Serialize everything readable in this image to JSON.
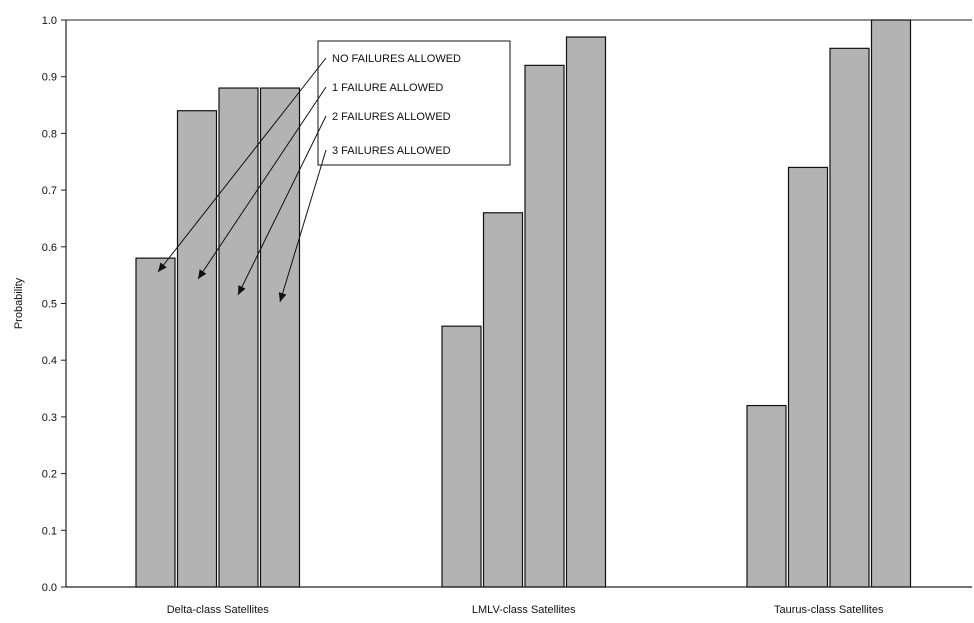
{
  "chart_data": {
    "type": "bar",
    "title": "",
    "xlabel": "",
    "ylabel": "Probability",
    "ylim": [
      0,
      1.0
    ],
    "y_ticks": [
      "0.0",
      "0.1",
      "0.2",
      "0.3",
      "0.4",
      "0.5",
      "0.6",
      "0.7",
      "0.8",
      "0.9",
      "1.0"
    ],
    "grid": false,
    "legend_placement": "inside-top-center",
    "bar_color": "#b3b3b3",
    "categories": [
      "Delta-class Satellites",
      "LMLV-class Satellites",
      "Taurus-class Satellites"
    ],
    "series": [
      {
        "name": "NO FAILURES ALLOWED",
        "values": [
          0.58,
          0.46,
          0.32
        ]
      },
      {
        "name": "1 FAILURE ALLOWED",
        "values": [
          0.84,
          0.66,
          0.74
        ]
      },
      {
        "name": "2 FAILURES ALLOWED",
        "values": [
          0.88,
          0.92,
          0.95
        ]
      },
      {
        "name": "3 FAILURES ALLOWED",
        "values": [
          0.88,
          0.97,
          1.0
        ]
      }
    ]
  }
}
